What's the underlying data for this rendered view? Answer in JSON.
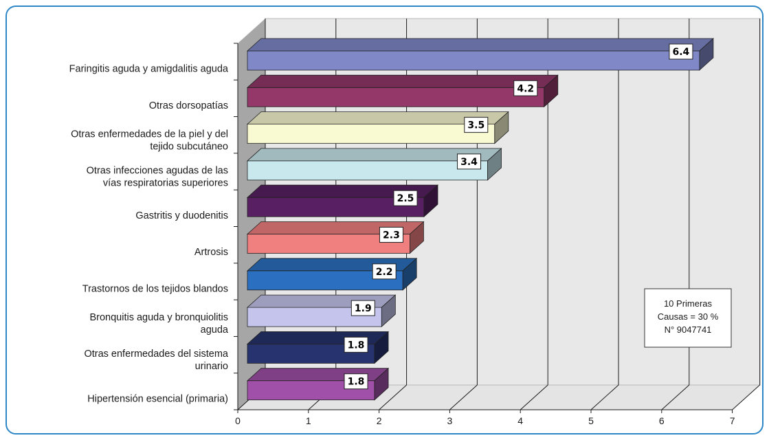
{
  "chart_data": {
    "type": "bar",
    "orientation": "horizontal",
    "three_d": true,
    "categories": [
      [
        "Faringitis aguda y amigdalitis aguda"
      ],
      [
        "Otras dorsopatías"
      ],
      [
        "Otras enfermedades de la piel y del",
        "tejido subcutáneo"
      ],
      [
        "Otras infecciones agudas de las",
        "vías respiratorias superiores"
      ],
      [
        "Gastritis y duodenitis"
      ],
      [
        "Artrosis"
      ],
      [
        "Trastornos de los tejidos blandos"
      ],
      [
        "Bronquitis aguda y bronquiolitis",
        "aguda"
      ],
      [
        "Otras enfermedades del sistema",
        "urinario"
      ],
      [
        "Hipertensión esencial (primaria)"
      ]
    ],
    "values": [
      6.4,
      4.2,
      3.5,
      3.4,
      2.5,
      2.3,
      2.2,
      1.9,
      1.8,
      1.8
    ],
    "value_labels": [
      "6.4",
      "4.2",
      "3.5",
      "3.4",
      "2.5",
      "2.3",
      "2.2",
      "1.9",
      "1.8",
      "1.8"
    ],
    "colors": [
      "#8088c8",
      "#94386a",
      "#fafad2",
      "#c8e8ee",
      "#582062",
      "#f08080",
      "#2b70c0",
      "#c4c4ec",
      "#26336e",
      "#a050a8"
    ],
    "xlim": [
      0,
      7
    ],
    "xticks": [
      "0",
      "1",
      "2",
      "3",
      "4",
      "5",
      "6",
      "7"
    ],
    "grid": true,
    "legend": "none",
    "annotation": [
      "10 Primeras",
      "Causas = 30 %",
      "N° 9047741"
    ]
  }
}
